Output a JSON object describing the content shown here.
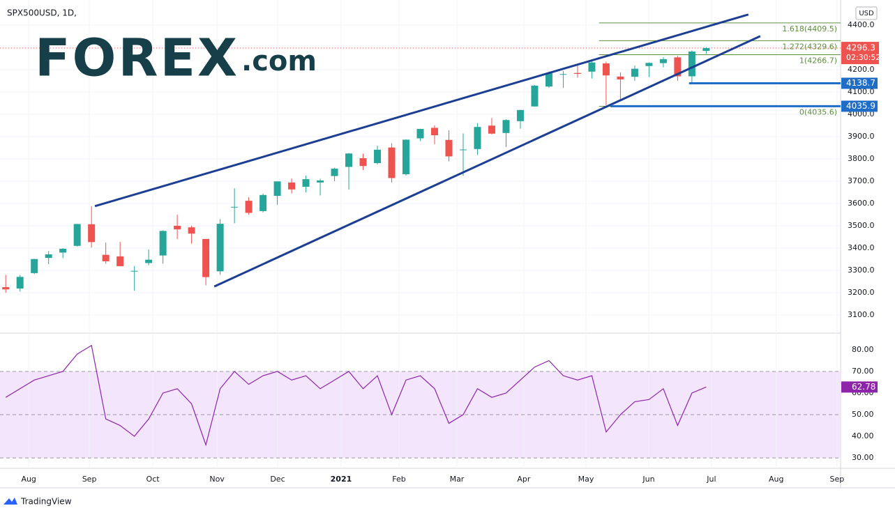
{
  "chart_data": [
    {
      "type": "candlestick",
      "title": "SPX500USD, 1D,",
      "currency": "USD",
      "countdown": "02:30:52",
      "logo": {
        "brand": "FOREX",
        "suffix": ".com"
      },
      "categories": [
        null,
        null,
        null,
        null,
        null,
        null,
        null,
        null,
        null,
        null,
        null,
        null,
        null,
        null,
        null,
        null,
        null,
        null,
        null,
        null,
        null,
        null,
        null,
        null,
        null,
        null,
        null,
        null,
        null,
        null,
        null,
        null,
        null,
        null,
        null,
        null,
        null,
        null,
        null,
        null,
        null,
        null,
        null,
        null,
        null,
        null,
        null,
        null,
        null,
        null
      ],
      "open": [
        3225,
        3219,
        3288,
        3356,
        3380,
        3410,
        3507,
        3370,
        3363,
        3296,
        3333,
        3367,
        3500,
        3493,
        3441,
        3296,
        3583,
        3612,
        3566,
        3634,
        3694,
        3675,
        3694,
        3723,
        3764,
        3803,
        3781,
        3851,
        3731,
        3892,
        3939,
        3885,
        3842,
        3844,
        3949,
        3916,
        3969,
        4035,
        4124,
        4179,
        4185,
        4191,
        4228,
        4169,
        4168,
        4216,
        4229,
        4255,
        4170,
        4284
      ],
      "high": [
        3280,
        3280,
        3352,
        3387,
        3400,
        3509,
        3588,
        3425,
        3428,
        3320,
        3394,
        3480,
        3550,
        3500,
        3441,
        3530,
        3668,
        3628,
        3644,
        3699,
        3712,
        3726,
        3711,
        3760,
        3826,
        3823,
        3859,
        3870,
        3887,
        3935,
        3950,
        3928,
        3914,
        3960,
        3983,
        3978,
        4020,
        4131,
        4191,
        4194,
        4218,
        4238,
        4236,
        4188,
        4218,
        4233,
        4255,
        4262,
        4286,
        4300
      ],
      "low": [
        3200,
        3205,
        3284,
        3328,
        3355,
        3407,
        3402,
        3330,
        3320,
        3209,
        3323,
        3330,
        3440,
        3420,
        3233,
        3280,
        3511,
        3550,
        3560,
        3594,
        3645,
        3650,
        3636,
        3700,
        3662,
        3750,
        3775,
        3694,
        3725,
        3880,
        3866,
        3789,
        3724,
        3818,
        3910,
        3853,
        3935,
        4034,
        4118,
        4118,
        4164,
        4160,
        4040,
        4061,
        4150,
        4167,
        4210,
        4150,
        4140,
        4271
      ],
      "close": [
        3215,
        3271,
        3351,
        3372,
        3397,
        3508,
        3427,
        3341,
        3319,
        3298,
        3348,
        3477,
        3484,
        3465,
        3270,
        3509,
        3585,
        3558,
        3638,
        3699,
        3663,
        3709,
        3703,
        3756,
        3824,
        3768,
        3841,
        3714,
        3886,
        3934,
        3906,
        3811,
        3842,
        3943,
        3913,
        3974,
        4019,
        4128,
        4185,
        4180,
        4181,
        4232,
        4174,
        4156,
        4204,
        4230,
        4247,
        4170,
        4281,
        4296.3
      ],
      "up_color": "#26a69a",
      "down_color": "#ef5350",
      "xlim": [
        -0.4,
        58.4
      ],
      "ylim": [
        3019,
        4512
      ],
      "yticks": [
        {
          "value": 3100,
          "label": "3100.0"
        },
        {
          "value": 3200,
          "label": "3200.0"
        },
        {
          "value": 3300,
          "label": "3300.0"
        },
        {
          "value": 3400,
          "label": "3400.0"
        },
        {
          "value": 3500,
          "label": "3500.0"
        },
        {
          "value": 3600,
          "label": "3600.0"
        },
        {
          "value": 3700,
          "label": "3700.0"
        },
        {
          "value": 3800,
          "label": "3800.0"
        },
        {
          "value": 3900,
          "label": "3900.0"
        },
        {
          "value": 4000,
          "label": "4000.0"
        },
        {
          "value": 4100,
          "label": "4100.0"
        },
        {
          "value": 4200,
          "label": "4200.0"
        },
        {
          "value": 4300,
          "label": "4300.0"
        },
        {
          "value": 4400,
          "label": "4400.0"
        }
      ],
      "grid": true,
      "trendlines": [
        {
          "x": [
            6.24,
            51.95
          ],
          "y": [
            3588,
            4447
          ],
          "color": "#1c3f94"
        },
        {
          "x": [
            14.59,
            52.78
          ],
          "y": [
            3228,
            4350
          ],
          "color": "#1c3f94"
        }
      ],
      "levels": [
        {
          "from": 47.8,
          "value": 4138.7
        },
        {
          "from": 42.3,
          "value": 4035.9
        }
      ],
      "level_color": "#1e6ec8",
      "fib": {
        "from": 41.5,
        "color": "#5b8f3b",
        "levels": [
          {
            "label": "1.618(4409.5)",
            "value": 4409.5
          },
          {
            "label": "1.272(4329.6)",
            "value": 4329.6
          },
          {
            "label": "1(4266.7)",
            "value": 4266.7
          },
          {
            "label": "0(4035.6)",
            "value": 4035.6
          }
        ]
      }
    },
    {
      "type": "line",
      "categories": [
        null,
        null,
        null,
        null,
        null,
        null,
        null,
        null,
        null,
        null,
        null,
        null,
        null,
        null,
        null,
        null,
        null,
        null,
        null,
        null,
        null,
        null,
        null,
        null,
        null,
        null,
        null,
        null,
        null,
        null,
        null,
        null,
        null,
        null,
        null,
        null,
        null,
        null,
        null,
        null,
        null,
        null,
        null,
        null,
        null,
        null,
        null,
        null,
        null,
        null
      ],
      "series": [
        {
          "color": "#8e24aa",
          "values": [
            58,
            62,
            66,
            68,
            70,
            78,
            82,
            48,
            45,
            40,
            48,
            60,
            62,
            55,
            36,
            62,
            70,
            64,
            68,
            70,
            66,
            68,
            62,
            66,
            70,
            62,
            68,
            50,
            66,
            68,
            62,
            46,
            50,
            62,
            58,
            60,
            66,
            72,
            75,
            68,
            66,
            68,
            42,
            50,
            56,
            57,
            62,
            45,
            60,
            62.78
          ]
        }
      ],
      "xlim": [
        -0.4,
        58.4
      ],
      "ylim": [
        25.2,
        87.7
      ],
      "yticks": [
        {
          "value": 80,
          "label": "80.00"
        },
        {
          "value": 70,
          "label": "70.00"
        },
        {
          "value": 60,
          "label": "60.00"
        },
        {
          "value": 50,
          "label": "50.00"
        },
        {
          "value": 40,
          "label": "40.00"
        },
        {
          "value": 30,
          "label": "30.00"
        }
      ],
      "levels": [
        70,
        50,
        30
      ],
      "band_color": "#f3e5fb",
      "xticks": [
        {
          "value": 1.61,
          "label": "Aug"
        },
        {
          "value": 5.85,
          "label": "Sep"
        },
        {
          "value": 10.29,
          "label": "Oct"
        },
        {
          "value": 14.78,
          "label": "Nov"
        },
        {
          "value": 19.02,
          "label": "Dec"
        },
        {
          "value": 23.46,
          "label": "2021"
        },
        {
          "value": 27.51,
          "label": "Feb"
        },
        {
          "value": 31.56,
          "label": "Mar"
        },
        {
          "value": 36.24,
          "label": "Apr"
        },
        {
          "value": 40.59,
          "label": "May"
        },
        {
          "value": 44.98,
          "label": "Jun"
        },
        {
          "value": 49.37,
          "label": "Jul"
        },
        {
          "value": 53.9,
          "label": "Aug"
        },
        {
          "value": 58.15,
          "label": "Sep"
        }
      ]
    }
  ],
  "footer": "TradingView"
}
